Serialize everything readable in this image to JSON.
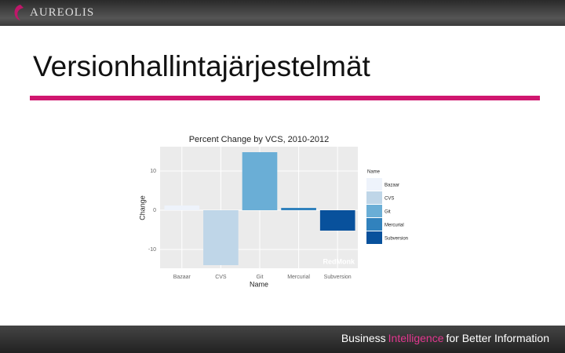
{
  "header": {
    "logo": "AUREOLIS"
  },
  "slide": {
    "title": "Versionhallintajärjestelmät"
  },
  "footer": {
    "parts": [
      "Business",
      "Intelligence",
      "for Better Information"
    ]
  },
  "chart_data": {
    "type": "bar",
    "title": "Percent Change by VCS, 2010-2012",
    "categories": [
      "Bazaar",
      "CVS",
      "Git",
      "Mercurial",
      "Subversion"
    ],
    "values": [
      1.2,
      -14,
      14.8,
      0.6,
      -5.2
    ],
    "colors": [
      "#eef3fb",
      "#bfd6e8",
      "#6aaed6",
      "#3182bd",
      "#08519c"
    ],
    "xlabel": "Name",
    "ylabel": "Change",
    "legend_title": "Name",
    "annotation": "RedMonk",
    "ylim": [
      -14.8,
      16.2
    ],
    "yticks": [
      -10,
      0,
      10
    ],
    "grid": true
  }
}
